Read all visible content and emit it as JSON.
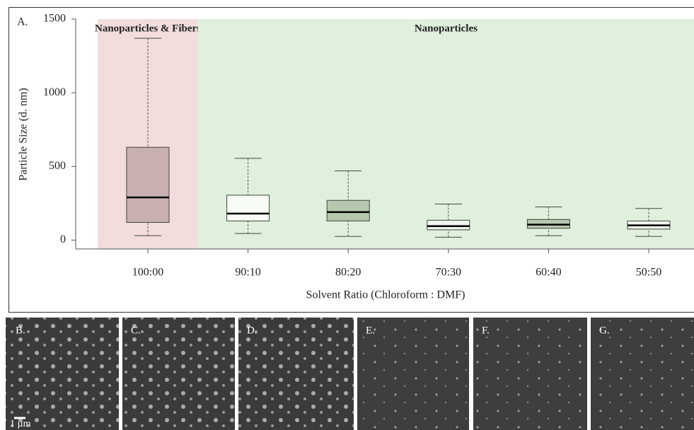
{
  "chart_data": {
    "type": "box",
    "panel_label": "A.",
    "ylabel": "Particle Size (d. nm)",
    "xlabel": "Solvent Ratio (Chloroform : DMF)",
    "categories": [
      "100:00",
      "90:10",
      "80:20",
      "70:30",
      "60:40",
      "50:50"
    ],
    "whisker_low": [
      30,
      45,
      25,
      20,
      30,
      25
    ],
    "q1": [
      120,
      130,
      130,
      70,
      80,
      75
    ],
    "median": [
      290,
      180,
      190,
      95,
      105,
      100
    ],
    "q3": [
      630,
      305,
      270,
      135,
      140,
      130
    ],
    "whisker_high": [
      1370,
      555,
      470,
      245,
      225,
      215
    ],
    "colors": [
      "#c8b0b1",
      "#f6fbf3",
      "#b5c8ae",
      "#eef5ea",
      "#b7c9af",
      "#eef5ea"
    ],
    "regions": [
      {
        "label": "Nanoparticles & Fibers",
        "span": [
          0,
          0
        ],
        "color": "#f2dcdc"
      },
      {
        "label": "Nanoparticles",
        "span": [
          1,
          5
        ],
        "color": "#dff0dc"
      }
    ],
    "ylim": [
      -60,
      1500
    ],
    "yticks": [
      0,
      500,
      1000,
      1500
    ]
  },
  "images": {
    "labels": [
      "B.",
      "C.",
      "D.",
      "E.",
      "F.",
      "G."
    ],
    "scale_bar": "1 µm"
  }
}
